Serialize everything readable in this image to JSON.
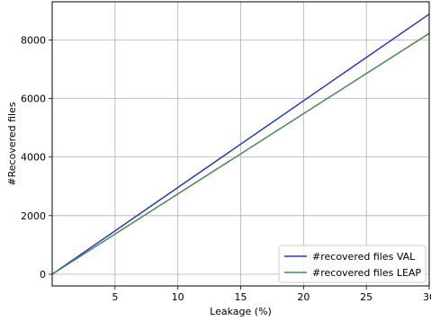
{
  "chart_data": {
    "type": "line",
    "title": "",
    "xlabel": "Leakage (%)",
    "ylabel": "#Recovered files",
    "xlim": [
      0,
      30
    ],
    "ylim": [
      -400,
      9300
    ],
    "x_ticks": [
      5,
      10,
      15,
      20,
      25,
      30
    ],
    "x_tick_labels": [
      "5",
      "10",
      "15",
      "20",
      "25",
      "30"
    ],
    "y_ticks": [
      0,
      2000,
      4000,
      6000,
      8000
    ],
    "y_tick_labels": [
      "0",
      "2000",
      "4000",
      "6000",
      "8000"
    ],
    "grid": true,
    "legend_position": "lower-right",
    "series": [
      {
        "name": "#recovered files VAL",
        "color": "#2b35c4",
        "x": [
          0,
          30
        ],
        "y": [
          0,
          8880
        ]
      },
      {
        "name": "#recovered files LEAP",
        "color": "#4a8a55",
        "x": [
          0,
          30
        ],
        "y": [
          0,
          8220
        ]
      }
    ]
  }
}
